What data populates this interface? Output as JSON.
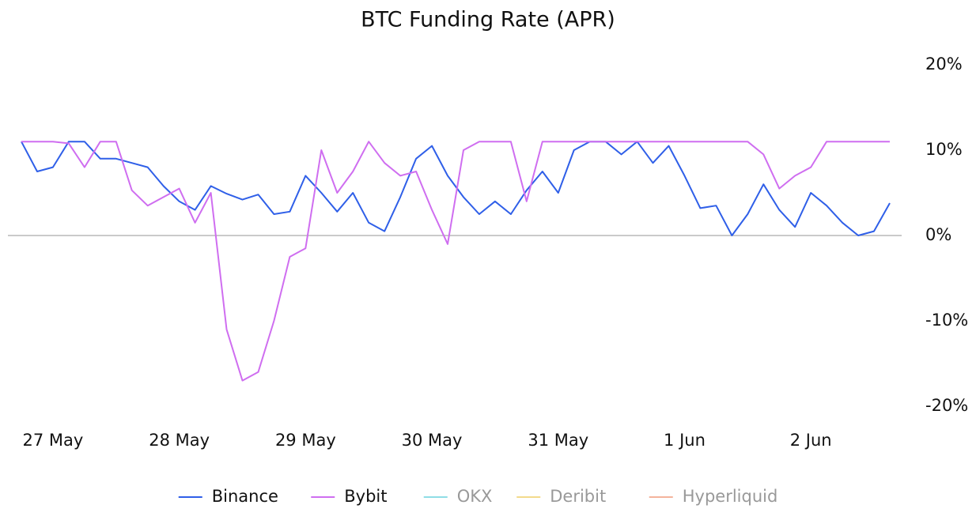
{
  "chart_data": {
    "type": "line",
    "title": "BTC Funding Rate (APR)",
    "categories": [
      null,
      null,
      "27 May",
      null,
      null,
      null,
      null,
      null,
      null,
      null,
      "28 May",
      null,
      null,
      null,
      null,
      null,
      null,
      null,
      "29 May",
      null,
      null,
      null,
      null,
      null,
      null,
      null,
      "30 May",
      null,
      null,
      null,
      null,
      null,
      null,
      null,
      "31 May",
      null,
      null,
      null,
      null,
      null,
      null,
      null,
      "1 Jun",
      null,
      null,
      null,
      null,
      null,
      null,
      null,
      "2 Jun",
      null,
      null,
      null,
      null,
      null
    ],
    "series": [
      {
        "name": "Binance",
        "color": "#2f5fe8",
        "values": [
          11,
          7.5,
          8,
          11,
          11,
          9,
          9,
          8.5,
          8,
          5.8,
          4,
          3,
          5.8,
          4.9,
          4.2,
          4.8,
          2.5,
          2.8,
          7,
          5,
          2.8,
          5,
          1.5,
          0.5,
          4.5,
          9,
          10.5,
          7,
          4.5,
          2.5,
          4,
          2.5,
          5.3,
          7.5,
          5,
          10,
          11,
          11,
          9.5,
          11,
          8.5,
          10.5,
          7,
          3.2,
          3.5,
          0,
          2.5,
          6,
          3,
          1,
          5,
          3.5,
          1.5,
          0,
          0.5,
          3.8
        ]
      },
      {
        "name": "Bybit",
        "color": "#cf6ef0",
        "values": [
          11,
          11,
          11,
          10.8,
          8,
          11,
          11,
          5.3,
          3.5,
          4.5,
          5.5,
          1.5,
          5,
          -11,
          -17,
          -16,
          -10,
          -2.5,
          -1.5,
          10,
          5,
          7.5,
          11,
          8.5,
          7,
          7.5,
          3,
          -1,
          10,
          11,
          11,
          11,
          4,
          11,
          11,
          11,
          11,
          11,
          11,
          11,
          11,
          11,
          11,
          11,
          11,
          11,
          11,
          9.5,
          5.5,
          7,
          8,
          11,
          11,
          11,
          11,
          11
        ]
      },
      {
        "name": "OKX",
        "color": "#8fdde6",
        "hidden": true,
        "values": [
          null,
          null,
          null,
          null,
          null,
          null,
          null,
          null,
          null,
          null,
          null,
          null,
          null,
          null,
          null,
          null,
          null,
          null,
          null,
          null,
          null,
          null,
          null,
          null,
          null,
          null,
          null,
          null,
          null,
          null,
          null,
          null,
          null,
          null,
          null,
          null,
          null,
          null,
          null,
          null,
          null,
          null,
          null,
          null,
          null,
          null,
          null,
          null,
          null,
          null,
          null,
          null,
          null,
          null,
          null,
          null
        ]
      },
      {
        "name": "Deribit",
        "color": "#f3da8c",
        "hidden": true,
        "values": [
          null,
          null,
          null,
          null,
          null,
          null,
          null,
          null,
          null,
          null,
          null,
          null,
          null,
          null,
          null,
          null,
          null,
          null,
          null,
          null,
          null,
          null,
          null,
          null,
          null,
          null,
          null,
          null,
          null,
          null,
          null,
          null,
          null,
          null,
          null,
          null,
          null,
          null,
          null,
          null,
          null,
          null,
          null,
          null,
          null,
          null,
          null,
          null,
          null,
          null,
          null,
          null,
          null,
          null,
          null,
          null
        ]
      },
      {
        "name": "Hyperliquid",
        "color": "#f4b49c",
        "hidden": true,
        "values": [
          null,
          null,
          null,
          null,
          null,
          null,
          null,
          null,
          null,
          null,
          null,
          null,
          null,
          null,
          null,
          null,
          null,
          null,
          null,
          null,
          null,
          null,
          null,
          null,
          null,
          null,
          null,
          null,
          null,
          null,
          null,
          null,
          null,
          null,
          null,
          null,
          null,
          null,
          null,
          null,
          null,
          null,
          null,
          null,
          null,
          null,
          null,
          null,
          null,
          null,
          null,
          null,
          null,
          null,
          null,
          null
        ]
      }
    ],
    "ylim": [
      -20,
      20
    ],
    "yticks": [
      {
        "value": 20,
        "label": "20%"
      },
      {
        "value": 10,
        "label": "10%"
      },
      {
        "value": 0,
        "label": "0%"
      },
      {
        "value": -10,
        "label": "-10%"
      },
      {
        "value": -20,
        "label": "-20%"
      }
    ],
    "grid": false,
    "legend": "bottom"
  }
}
